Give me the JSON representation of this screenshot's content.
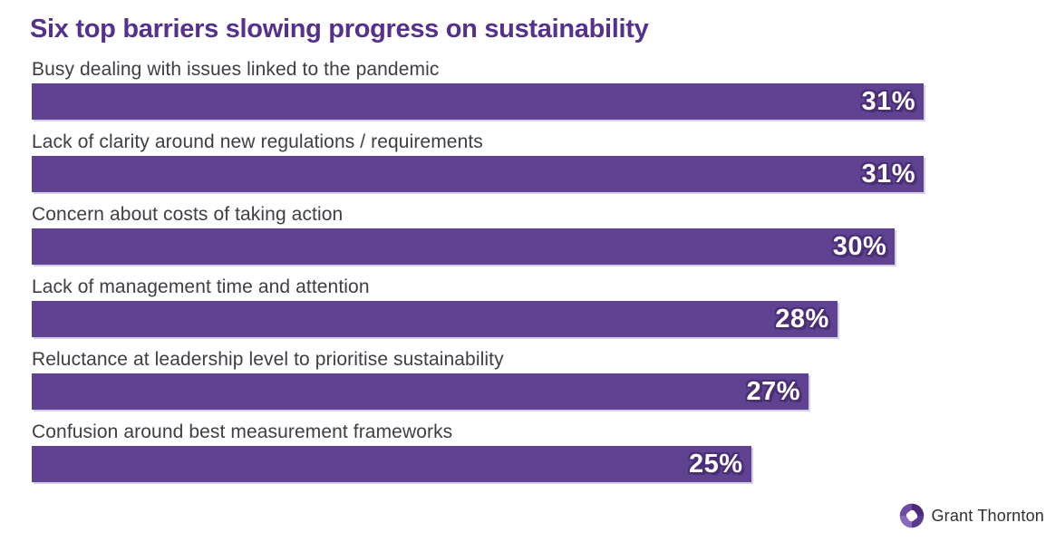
{
  "title": {
    "text": "Six top barriers slowing progress on sustainability",
    "color": "#55308c"
  },
  "chart_data": {
    "type": "bar",
    "orientation": "horizontal",
    "title": "Six top barriers slowing progress on sustainability",
    "categories": [
      "Busy dealing with issues linked to the pandemic",
      "Lack of clarity around new regulations / requirements",
      "Concern about costs of taking action",
      "Lack of management time and attention",
      "Reluctance at leadership level to prioritise sustainability",
      "Confusion around best measurement frameworks"
    ],
    "values": [
      31,
      31,
      30,
      28,
      27,
      25
    ],
    "data_labels": [
      "31%",
      "31%",
      "30%",
      "28%",
      "27%",
      "25%"
    ],
    "value_suffix": "%",
    "xlim": [
      0,
      31
    ],
    "grid": false,
    "legend": false,
    "bar_color": "#5f4392",
    "value_label_color": "#ffffff",
    "value_label_outline_color": "#4b2e74",
    "category_label_color": "#3e3e44"
  },
  "footer": {
    "logo_text": "Grant Thornton",
    "logo_icon": "grant-thornton-swirl-icon",
    "logo_icon_colors": {
      "base": "#5b3a92",
      "dark": "#4a2a78",
      "light": "#8a68bd",
      "center": "#ffffff"
    }
  }
}
